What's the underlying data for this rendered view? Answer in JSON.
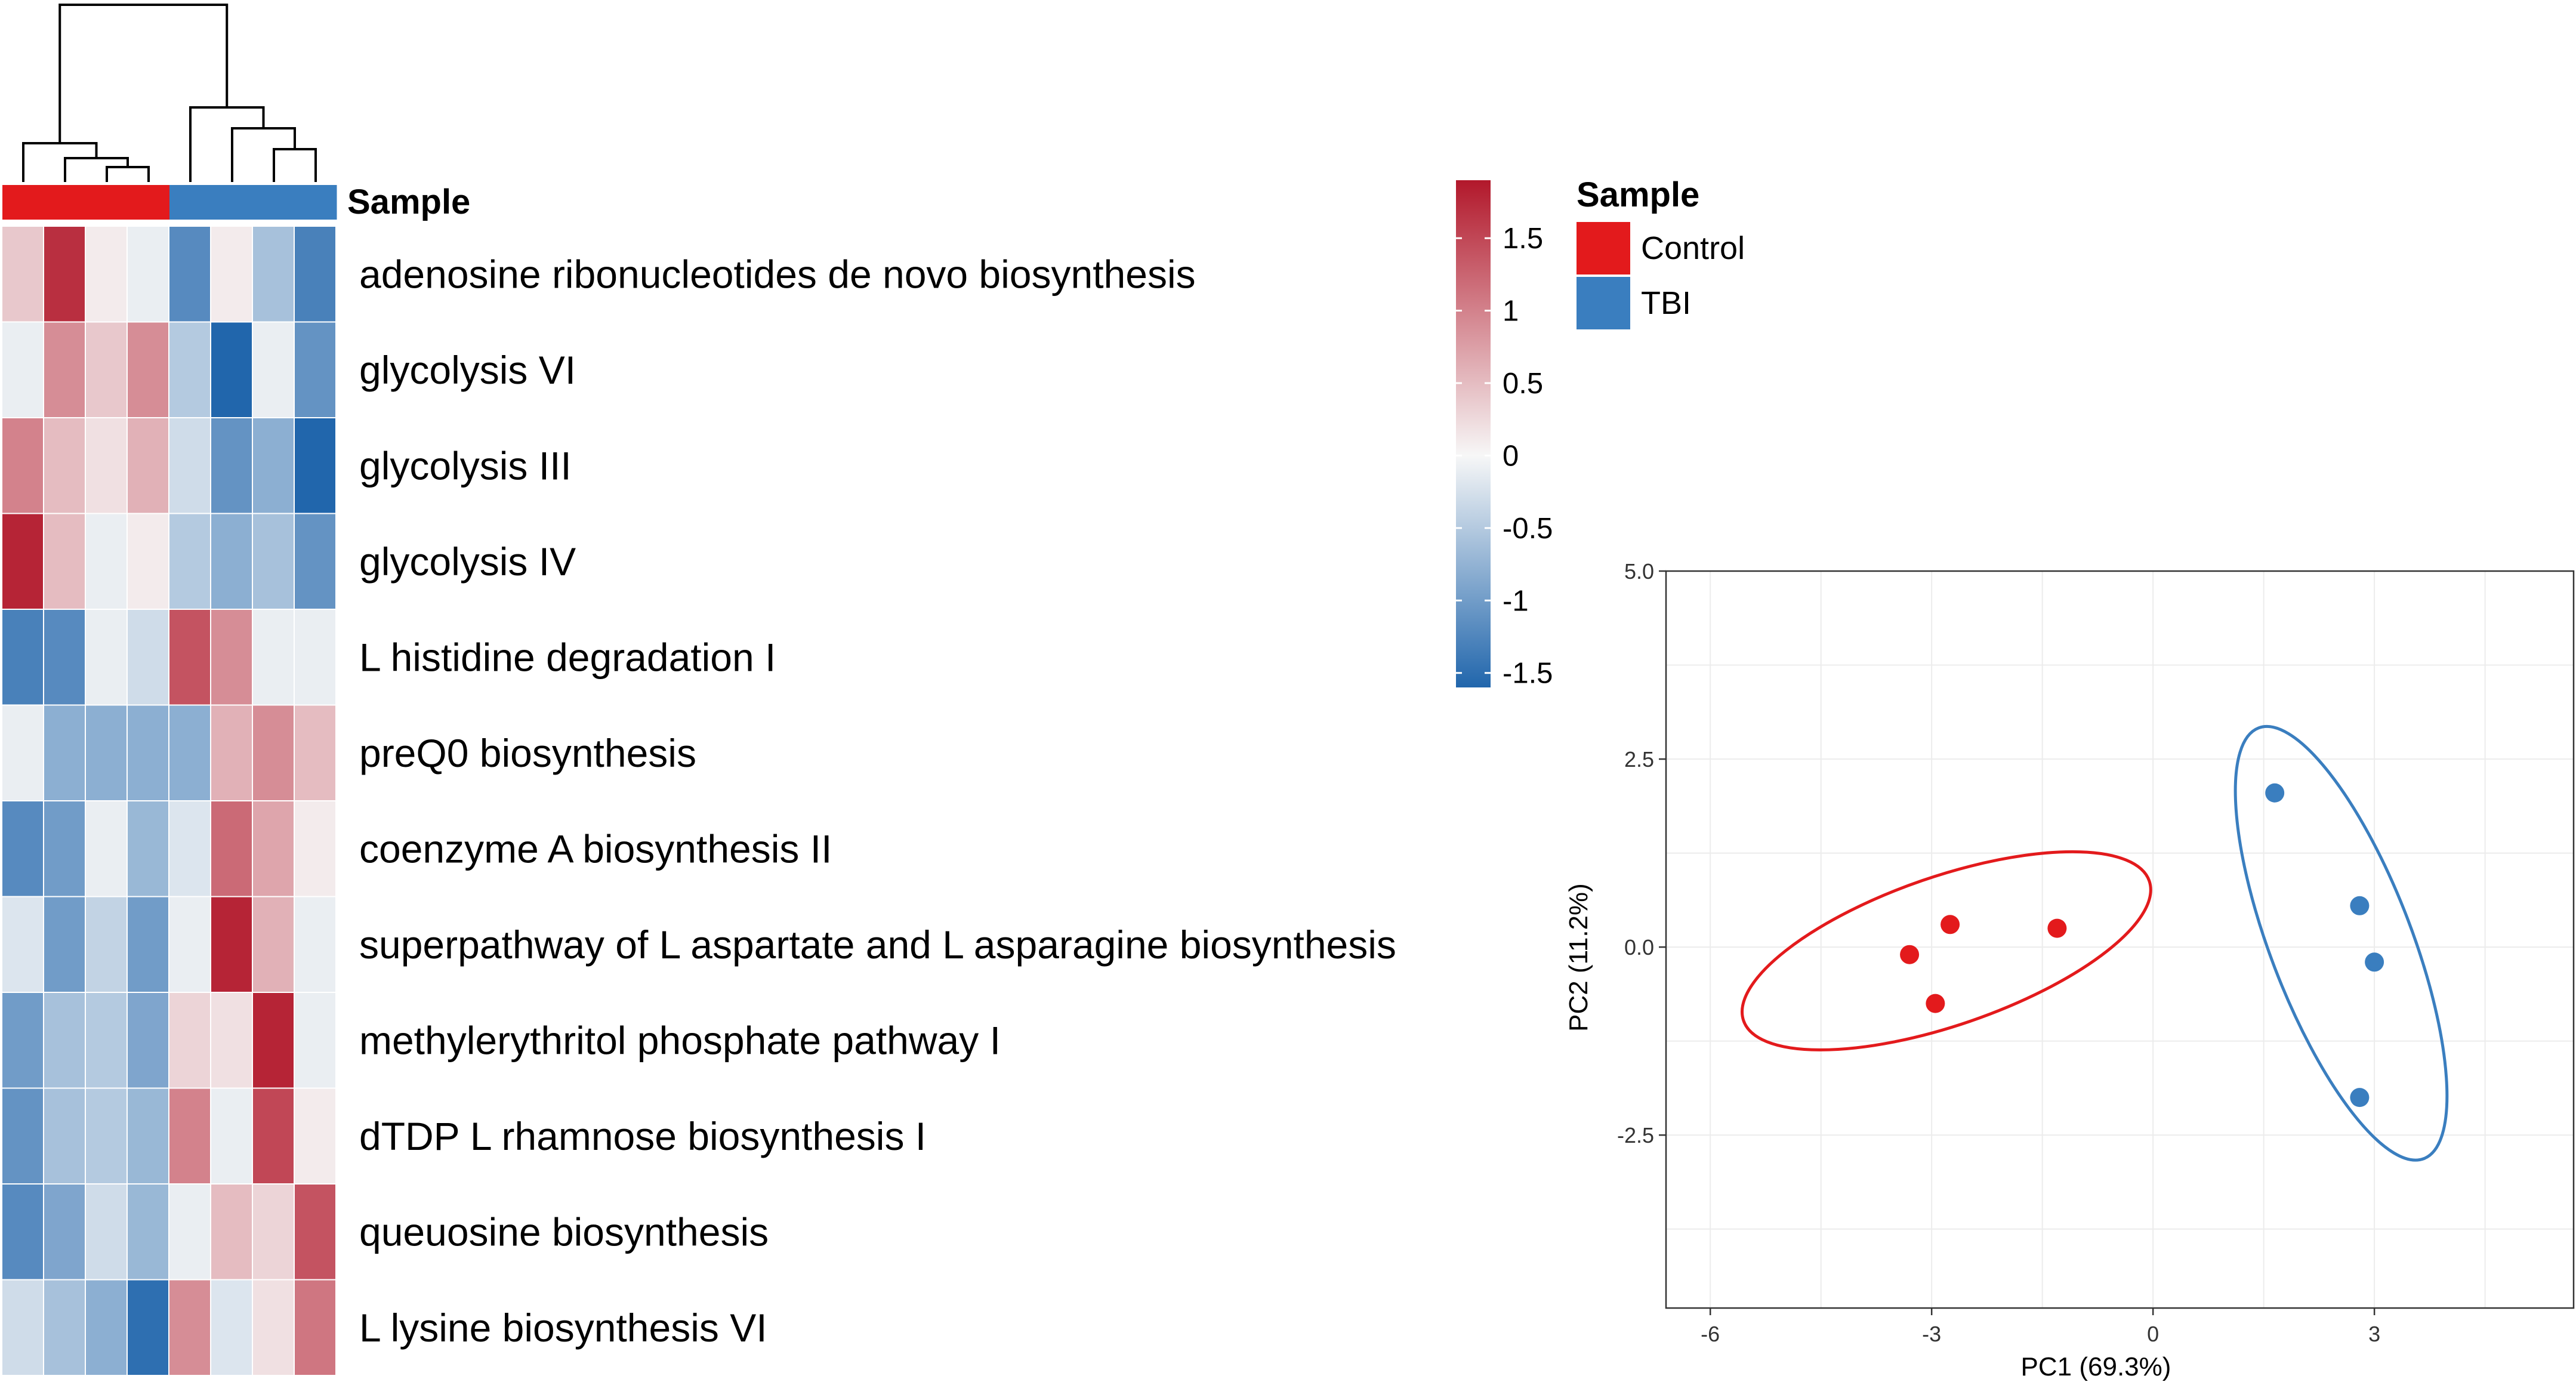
{
  "chart_data": [
    {
      "type": "heatmap",
      "annotation_label": "Sample",
      "column_groups": [
        "Control",
        "Control",
        "Control",
        "Control",
        "TBI",
        "TBI",
        "TBI",
        "TBI"
      ],
      "rows": [
        "adenosine ribonucleotides de novo biosynthesis",
        "glycolysis VI",
        "glycolysis III",
        "glycolysis IV",
        "L histidine degradation I",
        "preQ0 biosynthesis",
        "coenzyme A biosynthesis II",
        "superpathway of L aspartate and L asparagine biosynthesis",
        "methylerythritol phosphate pathway I",
        "dTDP L rhamnose biosynthesis I",
        "queuosine biosynthesis",
        "L lysine biosynthesis VI"
      ],
      "values": [
        [
          0.4,
          1.7,
          0.1,
          -0.1,
          -1.2,
          0.1,
          -0.6,
          -1.3
        ],
        [
          -0.1,
          0.9,
          0.4,
          0.9,
          -0.5,
          -1.6,
          -0.1,
          -1.1
        ],
        [
          1.0,
          0.5,
          0.2,
          0.6,
          -0.3,
          -1.1,
          -0.8,
          -1.6
        ],
        [
          1.8,
          0.5,
          -0.1,
          0.1,
          -0.5,
          -0.8,
          -0.6,
          -1.1
        ],
        [
          -1.3,
          -1.2,
          -0.1,
          -0.3,
          1.4,
          0.9,
          -0.1,
          -0.1
        ],
        [
          -0.1,
          -0.8,
          -0.8,
          -0.8,
          -0.8,
          0.6,
          0.9,
          0.5
        ],
        [
          -1.2,
          -1.0,
          -0.1,
          -0.7,
          -0.2,
          1.2,
          0.7,
          0.1
        ],
        [
          -0.2,
          -1.0,
          -0.4,
          -1.0,
          -0.1,
          1.8,
          0.6,
          -0.1
        ],
        [
          -1.0,
          -0.6,
          -0.5,
          -0.9,
          0.3,
          0.2,
          1.8,
          -0.1
        ],
        [
          -1.1,
          -0.6,
          -0.5,
          -0.7,
          1.0,
          -0.1,
          1.5,
          0.1
        ],
        [
          -1.2,
          -0.9,
          -0.3,
          -0.7,
          -0.1,
          0.5,
          0.3,
          1.4
        ],
        [
          -0.3,
          -0.6,
          -0.8,
          -1.5,
          0.9,
          -0.2,
          0.2,
          1.1
        ]
      ],
      "color_scale": {
        "ticks": [
          "1.5",
          "1",
          "0.5",
          "0",
          "-0.5",
          "-1",
          "-1.5"
        ],
        "min": -1.6,
        "max": 1.9,
        "low_color": "#2166ac",
        "mid_color": "#f7f7f7",
        "high_color": "#b2182b"
      },
      "legend": {
        "title": "Sample",
        "entries": [
          {
            "label": "Control",
            "color": "#e31a1c"
          },
          {
            "label": "TBI",
            "color": "#3a7ebf"
          }
        ]
      },
      "dendrogram": "columns"
    },
    {
      "type": "scatter",
      "xlabel": "PC1 (69.3%)",
      "ylabel": "PC2 (11.2%)",
      "xlim": [
        -6.6,
        5.7
      ],
      "ylim": [
        -4.8,
        5.0
      ],
      "xticks": [
        -6,
        -3,
        0,
        3
      ],
      "yticks": [
        5.0,
        2.5,
        0.0,
        -2.5
      ],
      "xtick_labels": [
        "-6",
        "-3",
        "0",
        "3"
      ],
      "ytick_labels": [
        "5.0",
        "2.5",
        "0.0",
        "-2.5"
      ],
      "grid": true,
      "series": [
        {
          "name": "Control",
          "color": "#e31a1c",
          "points": [
            [
              -3.3,
              -0.1
            ],
            [
              -2.75,
              0.3
            ],
            [
              -2.95,
              -0.75
            ],
            [
              -1.3,
              0.25
            ]
          ],
          "ellipse": {
            "center": [
              -2.8,
              -0.05
            ],
            "rx": 4.0,
            "ry": 1.05,
            "angle_deg": 19
          }
        },
        {
          "name": "TBI",
          "color": "#3a7ebf",
          "points": [
            [
              1.65,
              2.05
            ],
            [
              2.8,
              0.55
            ],
            [
              3.0,
              -0.2
            ],
            [
              2.8,
              -2.0
            ]
          ],
          "ellipse": {
            "center": [
              2.55,
              0.05
            ],
            "rx": 4.3,
            "ry": 1.0,
            "angle_deg": -69
          }
        }
      ]
    }
  ]
}
